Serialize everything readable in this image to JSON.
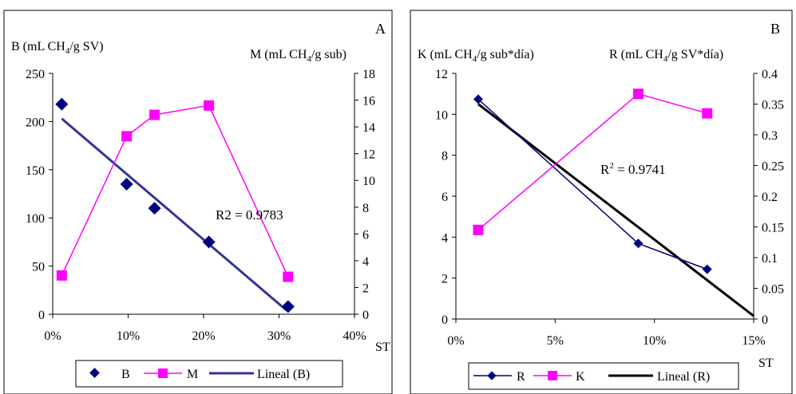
{
  "chart_data": [
    {
      "type": "line",
      "panel_label": "A",
      "xlabel": "ST",
      "left_axis": {
        "title_main": "B (mL CH",
        "title_sub": "4",
        "title_rest": "/g SV)",
        "ylim": [
          0,
          250
        ],
        "ticks": [
          "0",
          "50",
          "100",
          "150",
          "200",
          "250"
        ]
      },
      "right_axis": {
        "title_main": "M (mL CH",
        "title_sub": "4",
        "title_rest": "/g sub)",
        "ylim": [
          0,
          18
        ],
        "ticks": [
          "0",
          "2",
          "4",
          "6",
          "8",
          "10",
          "12",
          "14",
          "16",
          "18"
        ]
      },
      "x_axis": {
        "xlim": [
          0,
          0.4
        ],
        "ticks": [
          "0%",
          "10%",
          "20%",
          "30%",
          "40%"
        ]
      },
      "series": [
        {
          "name": "B",
          "axis": "left",
          "marker": "diamond",
          "line": false,
          "color": "#000080",
          "x": [
            0.012,
            0.098,
            0.135,
            0.207,
            0.312
          ],
          "y": [
            218,
            135,
            110,
            75,
            8
          ]
        },
        {
          "name": "M",
          "axis": "right",
          "marker": "square",
          "line": true,
          "color": "#FF00FF",
          "x": [
            0.012,
            0.098,
            0.135,
            0.207,
            0.312
          ],
          "y": [
            2.9,
            13.3,
            14.9,
            15.6,
            2.8
          ]
        },
        {
          "name": "Lineal (B)",
          "axis": "left",
          "marker": "none",
          "line": true,
          "trend": true,
          "color": "#333399",
          "x": [
            0.012,
            0.31
          ],
          "y": [
            203,
            4
          ]
        }
      ],
      "annotation": "R2 = 0.9783",
      "legend": [
        "B",
        "M",
        "Lineal (B)"
      ],
      "legend_position": "bottom"
    },
    {
      "type": "line",
      "panel_label": "B",
      "xlabel": "ST",
      "left_axis": {
        "title_main": "K (mL CH",
        "title_sub": "4",
        "title_rest": "/g sub*día)",
        "ylim": [
          0,
          12
        ],
        "ticks": [
          "0",
          "2",
          "4",
          "6",
          "8",
          "10",
          "12"
        ]
      },
      "right_axis": {
        "title_main": "R (mL CH",
        "title_sub": "4",
        "title_rest": "/g SV*día)",
        "ylim": [
          0,
          0.4
        ],
        "ticks": [
          "0",
          "0.05",
          "0.1",
          "0.15",
          "0.2",
          "0.25",
          "0.3",
          "0.35",
          "0.4"
        ]
      },
      "x_axis": {
        "xlim": [
          0,
          0.16
        ],
        "ticks": [
          "0%",
          "5%",
          "10%",
          "15%"
        ]
      },
      "series": [
        {
          "name": "R",
          "axis": "right",
          "marker": "diamond",
          "line": true,
          "color": "#000080",
          "x": [
            0.012,
            0.098,
            0.135
          ],
          "y": [
            0.358,
            0.123,
            0.081
          ]
        },
        {
          "name": "K",
          "axis": "left",
          "marker": "square",
          "line": true,
          "color": "#FF00FF",
          "x": [
            0.012,
            0.098,
            0.135
          ],
          "y": [
            4.35,
            11.0,
            10.05
          ]
        },
        {
          "name": "Lineal (R)",
          "axis": "right",
          "marker": "none",
          "line": true,
          "trend": true,
          "color": "#000000",
          "x": [
            0.012,
            0.16
          ],
          "y": [
            0.35,
            0.005
          ]
        }
      ],
      "annotation_main": "R",
      "annotation_sup": "2",
      "annotation_rest": " = 0.9741",
      "legend": [
        "R",
        "K",
        "Lineal (R)"
      ],
      "legend_position": "bottom"
    }
  ]
}
